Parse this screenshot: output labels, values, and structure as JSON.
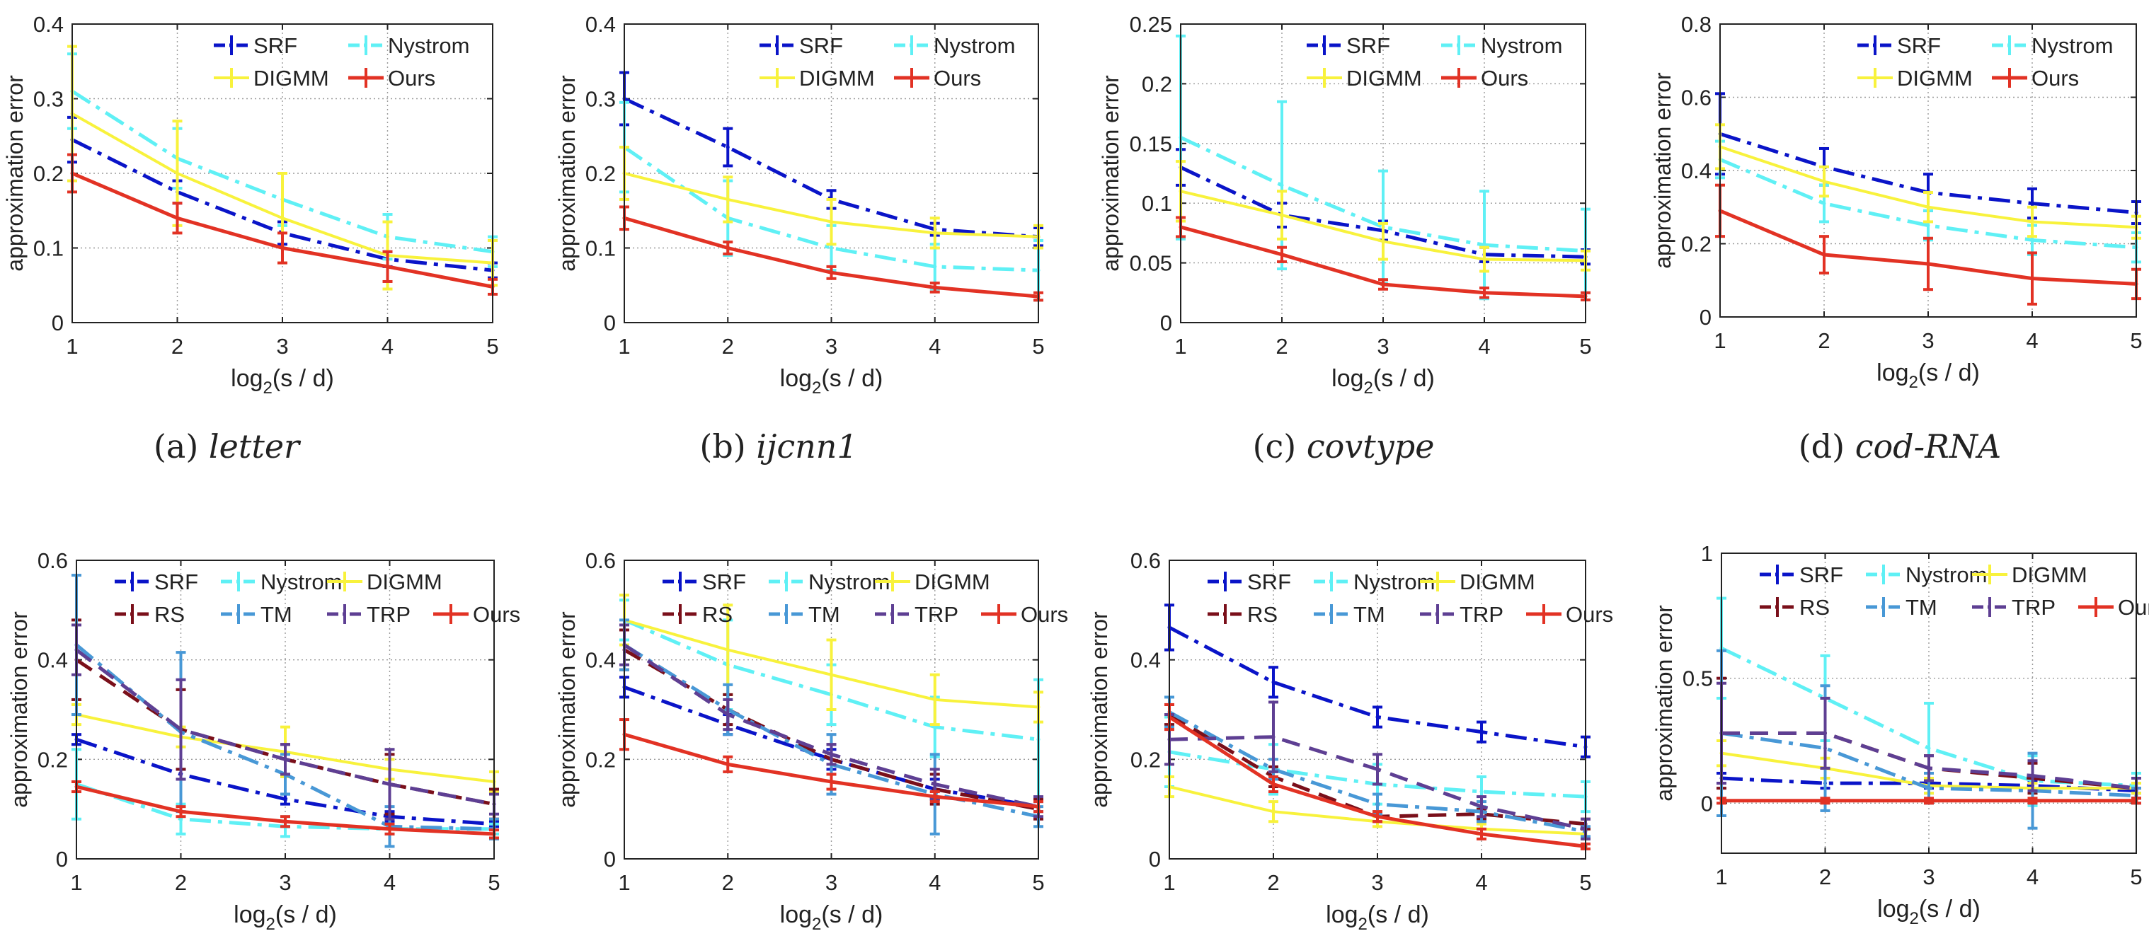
{
  "figure": {
    "captions": [
      {
        "label": "(a)",
        "name": "letter"
      },
      {
        "label": "(b)",
        "name": "ijcnn1"
      },
      {
        "label": "(c)",
        "name": "covtype"
      },
      {
        "label": "(d)",
        "name": "cod-RNA"
      }
    ]
  },
  "colors": {
    "SRF": "#0a14c8",
    "Nystrom": "#5ff0f5",
    "DIGMM": "#f8f23c",
    "RS": "#7a0f1a",
    "TM": "#4898d6",
    "TRP": "#5e3f93",
    "Ours": "#e23224"
  },
  "chart_data": [
    {
      "type": "line",
      "ylabel": "approximation error",
      "xlabel": "log2(s / d)",
      "x": [
        1,
        2,
        3,
        4,
        5
      ],
      "xlim": [
        1,
        5
      ],
      "ylim": [
        0,
        0.4
      ],
      "yticks": [
        0,
        0.1,
        0.2,
        0.3,
        0.4
      ],
      "yticklabels": [
        "0",
        "0.1",
        "0.2",
        "0.3",
        "0.4"
      ],
      "grid": true,
      "legend_position": "top-right",
      "series": [
        {
          "name": "SRF",
          "values": [
            0.245,
            0.175,
            0.12,
            0.085,
            0.07
          ],
          "err": [
            0.03,
            0.015,
            0.015,
            0.01,
            0.01
          ]
        },
        {
          "name": "Nystrom",
          "values": [
            0.31,
            0.22,
            0.165,
            0.115,
            0.095
          ],
          "err": [
            0.05,
            0.04,
            0.035,
            0.03,
            0.02
          ]
        },
        {
          "name": "DIGMM",
          "values": [
            0.28,
            0.2,
            0.14,
            0.09,
            0.08
          ],
          "err": [
            0.09,
            0.07,
            0.06,
            0.045,
            0.03
          ]
        },
        {
          "name": "Ours",
          "values": [
            0.2,
            0.14,
            0.1,
            0.075,
            0.048
          ],
          "err": [
            0.025,
            0.02,
            0.02,
            0.02,
            0.01
          ]
        }
      ]
    },
    {
      "type": "line",
      "ylabel": "approximation error",
      "xlabel": "log2(s / d)",
      "x": [
        1,
        2,
        3,
        4,
        5
      ],
      "xlim": [
        1,
        5
      ],
      "ylim": [
        0,
        0.4
      ],
      "yticks": [
        0,
        0.1,
        0.2,
        0.3,
        0.4
      ],
      "yticklabels": [
        "0",
        "0.1",
        "0.2",
        "0.3",
        "0.4"
      ],
      "grid": true,
      "legend_position": "top-right",
      "series": [
        {
          "name": "SRF",
          "values": [
            0.3,
            0.235,
            0.165,
            0.125,
            0.115
          ],
          "err": [
            0.035,
            0.025,
            0.012,
            0.008,
            0.012
          ]
        },
        {
          "name": "Nystrom",
          "values": [
            0.235,
            0.14,
            0.1,
            0.075,
            0.07
          ],
          "err": [
            0.06,
            0.05,
            0.03,
            0.03,
            0.04
          ]
        },
        {
          "name": "DIGMM",
          "values": [
            0.2,
            0.165,
            0.135,
            0.12,
            0.115
          ],
          "err": [
            0.035,
            0.03,
            0.03,
            0.02,
            0.015
          ]
        },
        {
          "name": "Ours",
          "values": [
            0.14,
            0.1,
            0.067,
            0.047,
            0.035
          ],
          "err": [
            0.015,
            0.008,
            0.008,
            0.006,
            0.005
          ]
        }
      ]
    },
    {
      "type": "line",
      "ylabel": "approximation error",
      "xlabel": "log2(s / d)",
      "x": [
        1,
        2,
        3,
        4,
        5
      ],
      "xlim": [
        1,
        5
      ],
      "ylim": [
        0,
        0.25
      ],
      "yticks": [
        0,
        0.05,
        0.1,
        0.15,
        0.2,
        0.25
      ],
      "yticklabels": [
        "0",
        "0.05",
        "0.1",
        "0.15",
        "0.2",
        "0.25"
      ],
      "grid": true,
      "legend_position": "top-right",
      "series": [
        {
          "name": "SRF",
          "values": [
            0.13,
            0.09,
            0.077,
            0.057,
            0.055
          ],
          "err": [
            0.015,
            0.01,
            0.008,
            0.006,
            0.006
          ]
        },
        {
          "name": "Nystrom",
          "values": [
            0.155,
            0.115,
            0.08,
            0.065,
            0.06
          ],
          "err": [
            0.085,
            0.07,
            0.047,
            0.045,
            0.035
          ]
        },
        {
          "name": "DIGMM",
          "values": [
            0.11,
            0.09,
            0.068,
            0.053,
            0.052
          ],
          "err": [
            0.025,
            0.02,
            0.015,
            0.01,
            0.008
          ]
        },
        {
          "name": "Ours",
          "values": [
            0.08,
            0.057,
            0.032,
            0.025,
            0.022
          ],
          "err": [
            0.008,
            0.006,
            0.004,
            0.004,
            0.003
          ]
        }
      ]
    },
    {
      "type": "line",
      "ylabel": "approximation error",
      "xlabel": "log2(s / d)",
      "x": [
        1,
        2,
        3,
        4,
        5
      ],
      "xlim": [
        1,
        5
      ],
      "ylim": [
        0,
        0.8
      ],
      "yticks": [
        0,
        0.2,
        0.4,
        0.6,
        0.8
      ],
      "yticklabels": [
        "0",
        "0.2",
        "0.4",
        "0.6",
        "0.8"
      ],
      "grid": true,
      "legend_position": "top-right",
      "series": [
        {
          "name": "SRF",
          "values": [
            0.5,
            0.41,
            0.34,
            0.31,
            0.285
          ],
          "err": [
            0.11,
            0.05,
            0.05,
            0.04,
            0.03
          ]
        },
        {
          "name": "Nystrom",
          "values": [
            0.43,
            0.31,
            0.25,
            0.21,
            0.19
          ],
          "err": [
            0.05,
            0.05,
            0.04,
            0.04,
            0.04
          ]
        },
        {
          "name": "DIGMM",
          "values": [
            0.465,
            0.37,
            0.3,
            0.26,
            0.245
          ],
          "err": [
            0.06,
            0.04,
            0.04,
            0.04,
            0.03
          ]
        },
        {
          "name": "Ours",
          "values": [
            0.29,
            0.17,
            0.145,
            0.105,
            0.09
          ],
          "err": [
            0.07,
            0.05,
            0.07,
            0.07,
            0.04
          ]
        }
      ]
    },
    {
      "type": "line",
      "ylabel": "approximation error",
      "xlabel": "log2(s / d)",
      "x": [
        1,
        2,
        3,
        4,
        5
      ],
      "xlim": [
        1,
        5
      ],
      "ylim": [
        0,
        0.6
      ],
      "yticks": [
        0,
        0.2,
        0.4,
        0.6
      ],
      "yticklabels": [
        "0",
        "0.2",
        "0.4",
        "0.6"
      ],
      "grid": true,
      "legend_position": "top-right",
      "series": [
        {
          "name": "SRF",
          "values": [
            0.24,
            0.17,
            0.12,
            0.085,
            0.07
          ],
          "err": [
            0.01,
            0.01,
            0.01,
            0.01,
            0.005
          ]
        },
        {
          "name": "Nystrom",
          "values": [
            0.15,
            0.08,
            0.065,
            0.06,
            0.06
          ],
          "err": [
            0.07,
            0.03,
            0.02,
            0.01,
            0.01
          ]
        },
        {
          "name": "DIGMM",
          "values": [
            0.29,
            0.245,
            0.215,
            0.18,
            0.155
          ],
          "err": [
            0.02,
            0.02,
            0.05,
            0.02,
            0.02
          ]
        },
        {
          "name": "RS",
          "values": [
            0.4,
            0.26,
            0.2,
            0.15,
            0.11
          ],
          "err": [
            0.08,
            0.08,
            0.03,
            0.06,
            0.03
          ]
        },
        {
          "name": "TM",
          "values": [
            0.43,
            0.255,
            0.17,
            0.065,
            0.06
          ],
          "err": [
            0.14,
            0.16,
            0.04,
            0.04,
            0.02
          ]
        },
        {
          "name": "TRP",
          "values": [
            0.42,
            0.26,
            0.2,
            0.15,
            0.11
          ],
          "err": [
            0.05,
            0.1,
            0.03,
            0.07,
            0.02
          ]
        },
        {
          "name": "Ours",
          "values": [
            0.145,
            0.095,
            0.075,
            0.06,
            0.05
          ],
          "err": [
            0.01,
            0.01,
            0.01,
            0.01,
            0.008
          ]
        }
      ]
    },
    {
      "type": "line",
      "ylabel": "approximation error",
      "xlabel": "log2(s / d)",
      "x": [
        1,
        2,
        3,
        4,
        5
      ],
      "xlim": [
        1,
        5
      ],
      "ylim": [
        0,
        0.6
      ],
      "yticks": [
        0,
        0.2,
        0.4,
        0.6
      ],
      "yticklabels": [
        "0",
        "0.2",
        "0.4",
        "0.6"
      ],
      "grid": true,
      "legend_position": "top-right",
      "series": [
        {
          "name": "SRF",
          "values": [
            0.345,
            0.27,
            0.2,
            0.14,
            0.105
          ],
          "err": [
            0.02,
            0.02,
            0.02,
            0.02,
            0.01
          ]
        },
        {
          "name": "Nystrom",
          "values": [
            0.48,
            0.39,
            0.33,
            0.265,
            0.24
          ],
          "err": [
            0.04,
            0.09,
            0.06,
            0.06,
            0.12
          ]
        },
        {
          "name": "DIGMM",
          "values": [
            0.48,
            0.42,
            0.37,
            0.32,
            0.305
          ],
          "err": [
            0.05,
            0.09,
            0.07,
            0.05,
            0.03
          ]
        },
        {
          "name": "RS",
          "values": [
            0.42,
            0.3,
            0.2,
            0.14,
            0.1
          ],
          "err": [
            0.04,
            0.03,
            0.03,
            0.03,
            0.02
          ]
        },
        {
          "name": "TM",
          "values": [
            0.43,
            0.3,
            0.19,
            0.13,
            0.085
          ],
          "err": [
            0.05,
            0.05,
            0.06,
            0.08,
            0.02
          ]
        },
        {
          "name": "TRP",
          "values": [
            0.43,
            0.29,
            0.21,
            0.15,
            0.105
          ],
          "err": [
            0.04,
            0.03,
            0.02,
            0.03,
            0.02
          ]
        },
        {
          "name": "Ours",
          "values": [
            0.25,
            0.19,
            0.155,
            0.125,
            0.105
          ],
          "err": [
            0.03,
            0.015,
            0.015,
            0.01,
            0.01
          ]
        }
      ]
    },
    {
      "type": "line",
      "ylabel": "approximation error",
      "xlabel": "log2(s / d)",
      "x": [
        1,
        2,
        3,
        4,
        5
      ],
      "xlim": [
        1,
        5
      ],
      "ylim": [
        0,
        0.6
      ],
      "yticks": [
        0,
        0.2,
        0.4,
        0.6
      ],
      "yticklabels": [
        "0",
        "0.2",
        "0.4",
        "0.6"
      ],
      "grid": true,
      "legend_position": "top-right",
      "series": [
        {
          "name": "SRF",
          "values": [
            0.465,
            0.355,
            0.285,
            0.255,
            0.225
          ],
          "err": [
            0.045,
            0.03,
            0.02,
            0.02,
            0.02
          ]
        },
        {
          "name": "Nystrom",
          "values": [
            0.215,
            0.18,
            0.15,
            0.135,
            0.125
          ],
          "err": [
            0.07,
            0.05,
            0.04,
            0.03,
            0.03
          ]
        },
        {
          "name": "DIGMM",
          "values": [
            0.145,
            0.095,
            0.075,
            0.06,
            0.05
          ],
          "err": [
            0.02,
            0.02,
            0.01,
            0.01,
            0.01
          ]
        },
        {
          "name": "RS",
          "values": [
            0.29,
            0.165,
            0.085,
            0.09,
            0.07
          ],
          "err": [
            0.02,
            0.02,
            0.01,
            0.01,
            0.01
          ]
        },
        {
          "name": "TM",
          "values": [
            0.295,
            0.18,
            0.11,
            0.095,
            0.055
          ],
          "err": [
            0.03,
            0.02,
            0.02,
            0.02,
            0.01
          ]
        },
        {
          "name": "TRP",
          "values": [
            0.24,
            0.245,
            0.18,
            0.105,
            0.06
          ],
          "err": [
            0.05,
            0.07,
            0.03,
            0.02,
            0.02
          ]
        },
        {
          "name": "Ours",
          "values": [
            0.285,
            0.15,
            0.085,
            0.05,
            0.025
          ],
          "err": [
            0.025,
            0.015,
            0.01,
            0.01,
            0.005
          ]
        }
      ]
    },
    {
      "type": "line",
      "ylabel": "approximation error",
      "xlabel": "log2(s / d)",
      "x": [
        1,
        2,
        3,
        4,
        5
      ],
      "xlim": [
        1,
        5
      ],
      "ylim": [
        -0.2,
        1
      ],
      "yticks": [
        0,
        0.5,
        1
      ],
      "yticklabels": [
        "0",
        "0.5",
        "1"
      ],
      "grid": true,
      "legend_position": "top-right",
      "series": [
        {
          "name": "SRF",
          "values": [
            0.1,
            0.08,
            0.08,
            0.07,
            0.05
          ],
          "err": [
            0.02,
            0.02,
            0.02,
            0.02,
            0.01
          ]
        },
        {
          "name": "Nystrom",
          "values": [
            0.62,
            0.42,
            0.22,
            0.09,
            0.07
          ],
          "err": [
            0.2,
            0.17,
            0.18,
            0.1,
            0.05
          ]
        },
        {
          "name": "DIGMM",
          "values": [
            0.2,
            0.14,
            0.07,
            0.06,
            0.06
          ],
          "err": [
            0.05,
            0.04,
            0.03,
            0.02,
            0.02
          ]
        },
        {
          "name": "RS",
          "values": [
            0.28,
            0.28,
            0.14,
            0.1,
            0.06
          ],
          "err": [
            0.22,
            0.14,
            0.05,
            0.06,
            0.04
          ]
        },
        {
          "name": "TM",
          "values": [
            0.28,
            0.22,
            0.06,
            0.05,
            0.03
          ],
          "err": [
            0.33,
            0.25,
            0.06,
            0.15,
            0.03
          ]
        },
        {
          "name": "TRP",
          "values": [
            0.28,
            0.28,
            0.14,
            0.11,
            0.06
          ],
          "err": [
            0.2,
            0.14,
            0.05,
            0.06,
            0.04
          ]
        },
        {
          "name": "Ours",
          "values": [
            0.01,
            0.01,
            0.01,
            0.01,
            0.01
          ],
          "err": [
            0.01,
            0.01,
            0.01,
            0.01,
            0.01
          ]
        }
      ]
    }
  ]
}
